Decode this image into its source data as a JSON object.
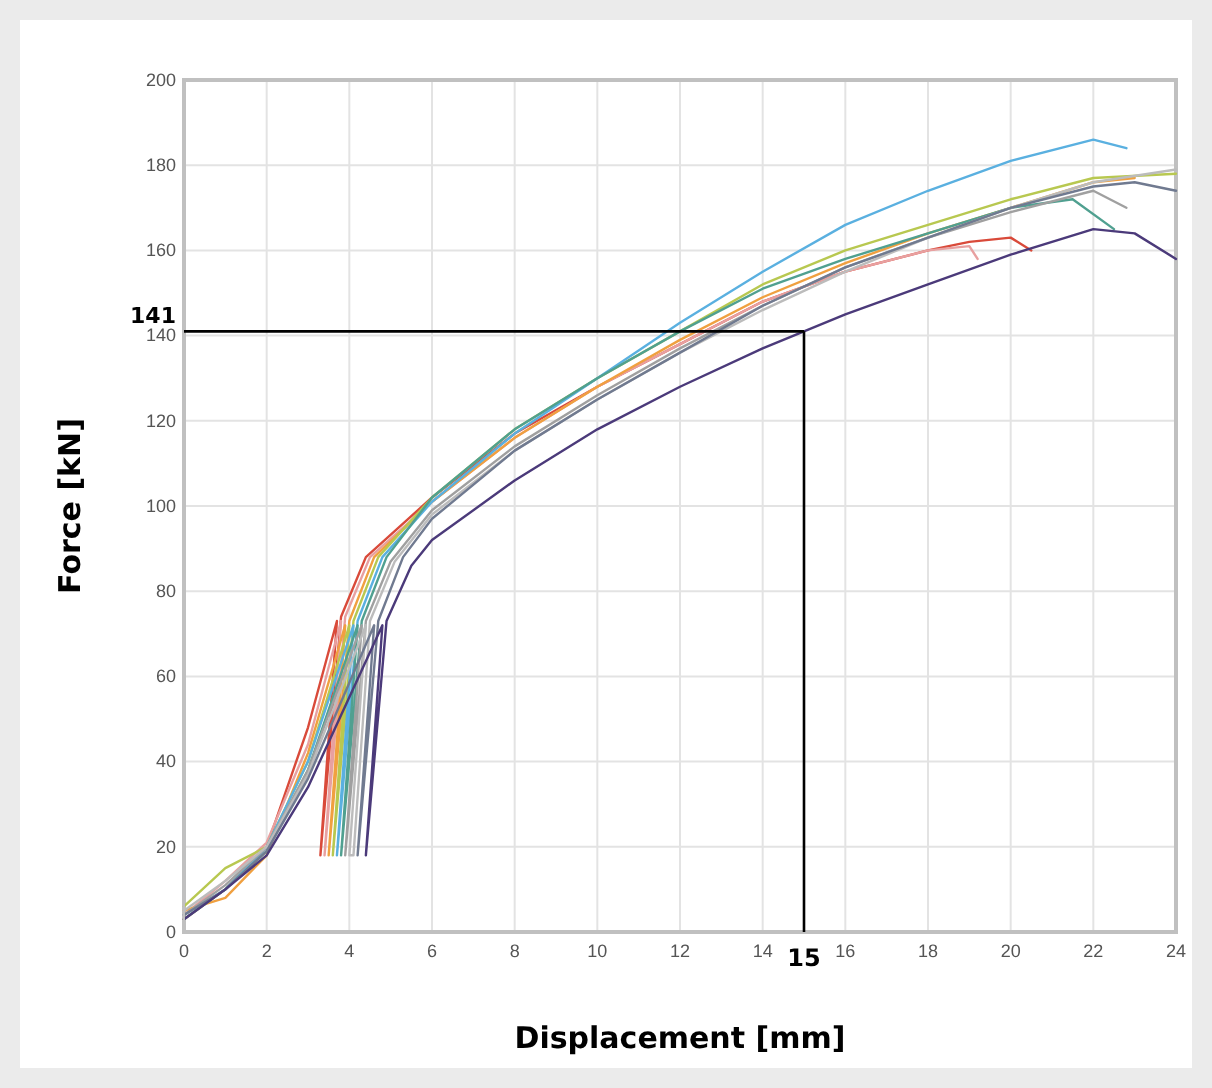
{
  "chart_data": {
    "type": "line",
    "xlabel": "Displacement [mm]",
    "ylabel": "Force [kN]",
    "xlim": [
      0,
      24
    ],
    "ylim": [
      0,
      200
    ],
    "xticks": [
      0,
      2,
      4,
      6,
      8,
      10,
      12,
      14,
      16,
      18,
      20,
      22,
      24
    ],
    "yticks": [
      0,
      20,
      40,
      60,
      80,
      100,
      120,
      140,
      160,
      180,
      200
    ],
    "grid": true,
    "legend": false,
    "marker": "none",
    "line_style": "solid",
    "ref_lines": [
      {
        "axis": "y",
        "value": 141,
        "label": "141",
        "color": "#000000"
      },
      {
        "axis": "x",
        "value": 15,
        "label": "15",
        "color": "#000000"
      }
    ],
    "series": [
      {
        "color": "#d94a3a",
        "x": [
          0,
          1,
          2,
          3,
          3.7,
          3.3,
          3.8,
          4.4,
          6,
          8,
          10,
          12,
          14,
          16,
          18,
          19,
          20,
          20.5
        ],
        "values": [
          3,
          10,
          20,
          48,
          73,
          18,
          74,
          88,
          102,
          117,
          128,
          138,
          148,
          155,
          160,
          162,
          163,
          160
        ]
      },
      {
        "color": "#e8a0a0",
        "x": [
          0,
          1,
          2,
          3,
          3.8,
          3.4,
          3.9,
          4.5,
          6,
          8,
          10,
          12,
          14,
          16,
          18,
          19,
          19.2
        ],
        "values": [
          4,
          12,
          21,
          44,
          73,
          18,
          74,
          88,
          101,
          116,
          128,
          138,
          148,
          155,
          160,
          161,
          158
        ]
      },
      {
        "color": "#f0a040",
        "x": [
          0,
          1,
          2,
          3,
          3.9,
          3.5,
          4,
          4.6,
          6,
          8,
          10,
          12,
          14,
          16,
          18,
          20,
          22,
          23
        ],
        "values": [
          5,
          8,
          18,
          42,
          72,
          18,
          73,
          88,
          101,
          116,
          128,
          139,
          149,
          157,
          164,
          170,
          176,
          177
        ]
      },
      {
        "color": "#b8c850",
        "x": [
          0,
          1,
          2,
          3,
          4,
          3.6,
          4.1,
          4.7,
          6,
          8,
          10,
          12,
          14,
          16,
          18,
          20,
          22,
          24
        ],
        "values": [
          6,
          15,
          20,
          40,
          72,
          18,
          73,
          88,
          102,
          118,
          130,
          141,
          152,
          160,
          166,
          172,
          177,
          178
        ]
      },
      {
        "color": "#5ab0e0",
        "x": [
          0,
          1,
          2,
          3,
          4.1,
          3.7,
          4.2,
          4.8,
          6,
          8,
          10,
          12,
          14,
          16,
          18,
          20,
          22,
          22.8
        ],
        "values": [
          4,
          10,
          20,
          40,
          72,
          18,
          73,
          88,
          101,
          117,
          130,
          143,
          155,
          166,
          174,
          181,
          186,
          184
        ]
      },
      {
        "color": "#50a090",
        "x": [
          0,
          1,
          2,
          3,
          4.2,
          3.8,
          4.3,
          4.9,
          6,
          8,
          10,
          12,
          14,
          16,
          18,
          20,
          21.5,
          22.5
        ],
        "values": [
          3,
          10,
          19,
          38,
          72,
          18,
          73,
          88,
          102,
          118,
          130,
          141,
          151,
          158,
          164,
          170,
          172,
          165
        ]
      },
      {
        "color": "#a0a0a0",
        "x": [
          0,
          1,
          2,
          3,
          4.3,
          3.9,
          4.4,
          5,
          6,
          8,
          10,
          12,
          14,
          16,
          18,
          20,
          22,
          22.8
        ],
        "values": [
          4,
          11,
          20,
          38,
          72,
          18,
          73,
          87,
          99,
          114,
          126,
          137,
          147,
          156,
          163,
          169,
          174,
          170
        ]
      },
      {
        "color": "#bcbcbc",
        "x": [
          0,
          1,
          2,
          3,
          4.4,
          4,
          4.1,
          4.5,
          5.1,
          6,
          8,
          10,
          12,
          14,
          16,
          18,
          20,
          22,
          24
        ],
        "values": [
          5,
          12,
          20,
          37,
          72,
          18,
          18,
          73,
          87,
          98,
          113,
          125,
          136,
          146,
          155,
          163,
          170,
          176,
          179
        ]
      },
      {
        "color": "#707a90",
        "x": [
          0,
          1,
          2,
          3,
          4.6,
          4.2,
          4.7,
          5.3,
          6,
          8,
          10,
          12,
          14,
          16,
          18,
          20,
          22,
          23,
          24
        ],
        "values": [
          4,
          10,
          19,
          36,
          72,
          18,
          73,
          88,
          97,
          113,
          125,
          136,
          147,
          156,
          163,
          170,
          175,
          176,
          174
        ]
      },
      {
        "color": "#4b3a7a",
        "x": [
          0,
          1,
          2,
          3,
          4.8,
          4.4,
          4.9,
          5.5,
          6,
          8,
          10,
          12,
          14,
          15,
          16,
          18,
          20,
          22,
          23,
          24
        ],
        "values": [
          3,
          10,
          18,
          34,
          72,
          18,
          73,
          86,
          92,
          106,
          118,
          128,
          137,
          141,
          145,
          152,
          159,
          165,
          164,
          158
        ]
      }
    ]
  }
}
